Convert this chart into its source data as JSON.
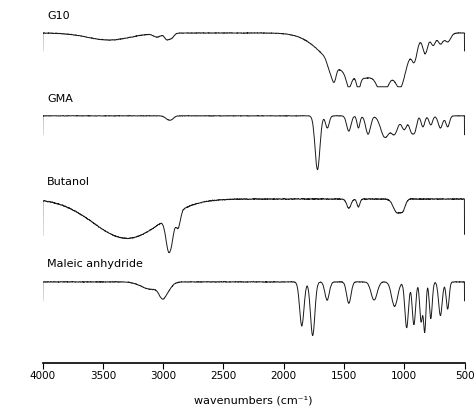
{
  "title": "",
  "xlabel": "wavenumbers (cm⁻¹)",
  "xmin": 500,
  "xmax": 4000,
  "xticks": [
    4000,
    3500,
    3000,
    2500,
    2000,
    1500,
    1000,
    500
  ],
  "spectra_labels": [
    "G10",
    "GMA",
    "Butanol",
    "Maleic anhydride"
  ],
  "line_color": "#1a1a1a",
  "bg_color": "#ffffff",
  "linewidth": 0.7,
  "label_fontsize": 8,
  "xlabel_fontsize": 8,
  "tick_fontsize": 7.5
}
